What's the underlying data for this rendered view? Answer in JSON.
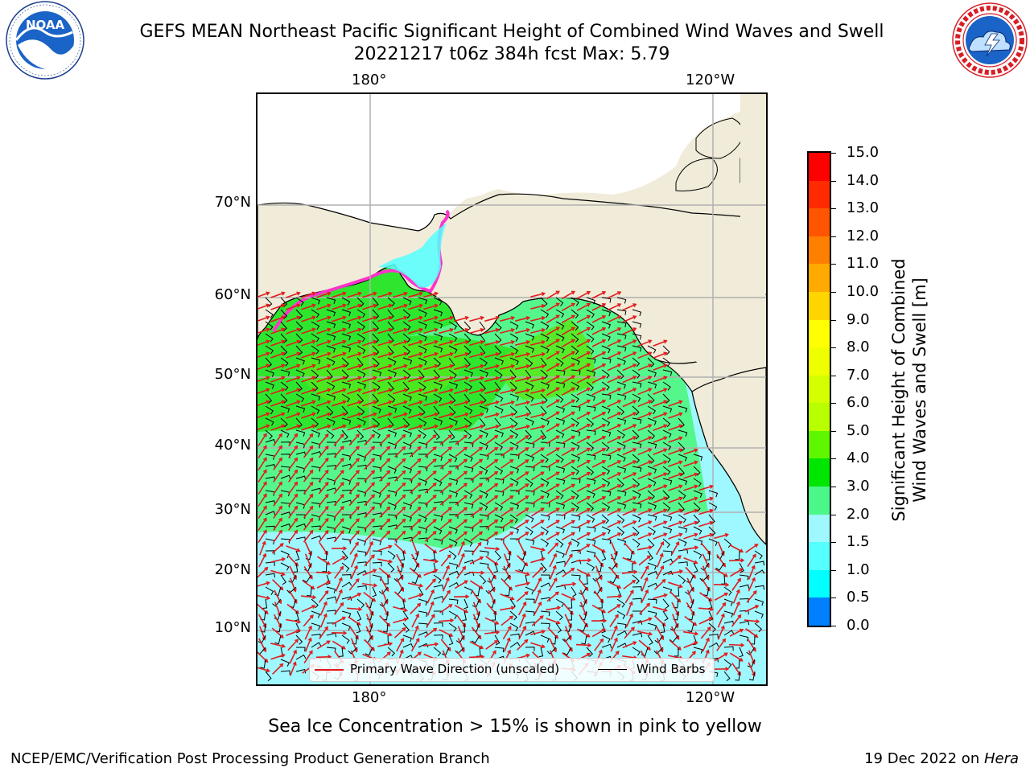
{
  "header": {
    "title_line1": "GEFS MEAN Northeast Pacific Significant Height of Combined Wind Waves and Swell",
    "title_line2": "20221217 t06z 384h fcst   Max: 5.79"
  },
  "logos": {
    "left": {
      "name": "noaa-logo",
      "text": "NOAA",
      "ring_text": "NATIONAL OCEANIC AND ATMOSPHERIC ADMINISTRATION · U.S. DEPARTMENT OF COMMERCE"
    },
    "right": {
      "name": "nws-logo",
      "ring_text": "NATIONAL WEATHER SERVICE"
    }
  },
  "map": {
    "lon_labels": [
      "180°",
      "120°W"
    ],
    "lat_labels": [
      "70°N",
      "60°N",
      "50°N",
      "40°N",
      "30°N",
      "20°N",
      "10°N"
    ],
    "colors": {
      "ocean_low": "#9ff7ff",
      "ocean_mid": "#55f78c",
      "ocean_high": "#2fe62f",
      "ocean_peak": "#57e81a",
      "land": "#f0ecd9",
      "gridline": "#b0b0b0",
      "wave_arrow": "#e31a1c",
      "wind_barb": "#000000",
      "sea_ice": "#ff33cc"
    },
    "legend": {
      "wave_label": "Primary Wave Direction (unscaled)",
      "barb_label": "Wind Barbs"
    }
  },
  "colorbar": {
    "label_line1": "Significant Height of Combined",
    "label_line2": "Wind Waves and Swell [m]",
    "ticks": [
      "15.0",
      "14.0",
      "13.0",
      "12.0",
      "11.0",
      "10.0",
      "9.0",
      "8.0",
      "7.0",
      "6.0",
      "5.0",
      "4.0",
      "3.0",
      "2.0",
      "1.5",
      "1.0",
      "0.5",
      "0.0"
    ],
    "colors_top_to_bottom": [
      "#ff0000",
      "#ff2a00",
      "#ff5500",
      "#ff8000",
      "#ffaa00",
      "#ffd500",
      "#ffff00",
      "#f0ff00",
      "#d4ff00",
      "#b8ff00",
      "#5ef700",
      "#00e600",
      "#4cf78a",
      "#9ff7ff",
      "#55ffff",
      "#00ffff",
      "#0080ff",
      "#0000ff"
    ]
  },
  "footer": {
    "note": "Sea Ice Concentration > 15% is shown in pink to yellow",
    "left": "NCEP/EMC/Verification Post Processing Product Generation Branch",
    "right_date": "19 Dec 2022 on ",
    "right_machine": "Hera"
  }
}
